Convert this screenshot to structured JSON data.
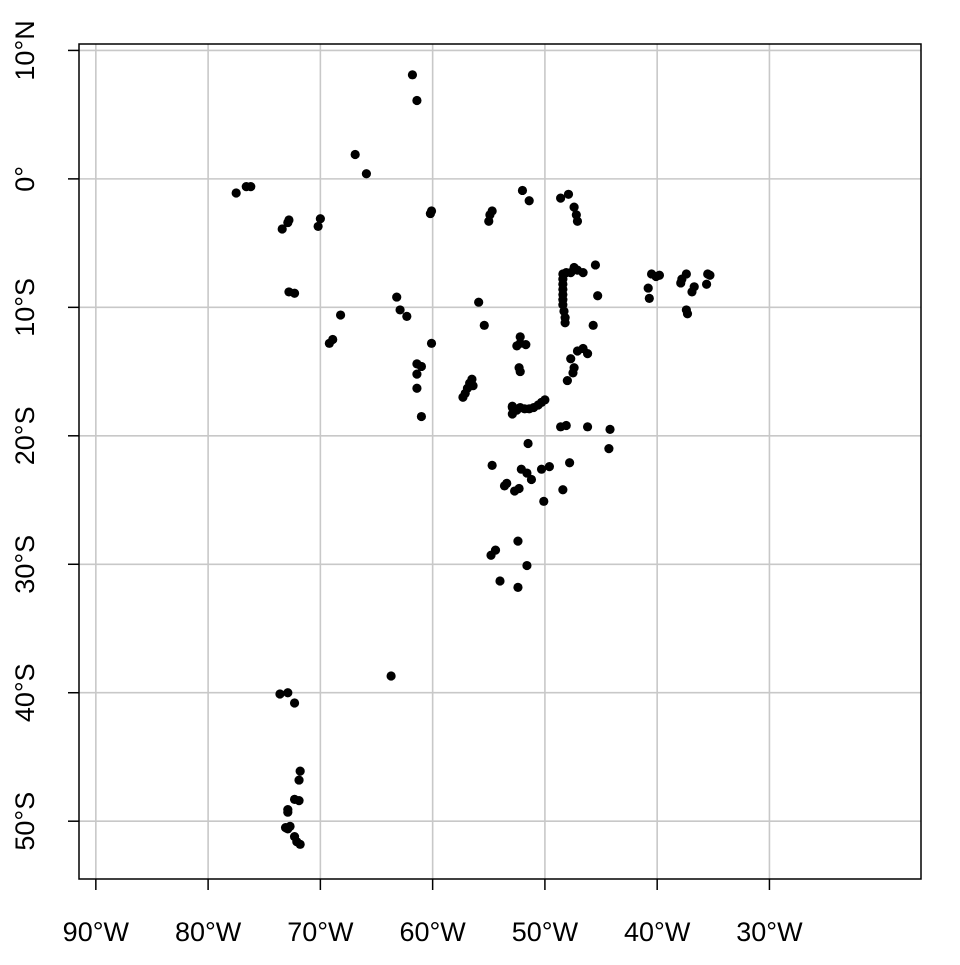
{
  "chart_data": {
    "type": "scatter",
    "title": "",
    "xlabel": "",
    "ylabel": "",
    "xlim": [
      -91.5,
      -16.5
    ],
    "ylim": [
      -54.5,
      10.5
    ],
    "grid": true,
    "x_ticks": [
      {
        "value": -90,
        "label": "90°W"
      },
      {
        "value": -80,
        "label": "80°W"
      },
      {
        "value": -70,
        "label": "70°W"
      },
      {
        "value": -60,
        "label": "60°W"
      },
      {
        "value": -50,
        "label": "50°W"
      },
      {
        "value": -40,
        "label": "40°W"
      },
      {
        "value": -30,
        "label": "30°W"
      }
    ],
    "y_ticks": [
      {
        "value": 10,
        "label": "10°N"
      },
      {
        "value": 0,
        "label": "0°"
      },
      {
        "value": -10,
        "label": "10°S"
      },
      {
        "value": -20,
        "label": "20°S"
      },
      {
        "value": -30,
        "label": "30°S"
      },
      {
        "value": -40,
        "label": "40°S"
      },
      {
        "value": -50,
        "label": "50°S"
      }
    ],
    "grid_x": [
      -90,
      -80,
      -70,
      -60,
      -50,
      -40,
      -30
    ],
    "grid_y": [
      10,
      0,
      -10,
      -20,
      -30,
      -40,
      -50
    ],
    "point_color": "#000000",
    "points": [
      {
        "x": -61.8,
        "y": 8.1
      },
      {
        "x": -61.4,
        "y": 6.1
      },
      {
        "x": -66.9,
        "y": 1.9
      },
      {
        "x": -65.9,
        "y": 0.4
      },
      {
        "x": -77.5,
        "y": -1.1
      },
      {
        "x": -76.6,
        "y": -0.6
      },
      {
        "x": -76.2,
        "y": -0.6
      },
      {
        "x": -73.4,
        "y": -3.9
      },
      {
        "x": -72.9,
        "y": -3.4
      },
      {
        "x": -72.8,
        "y": -3.2
      },
      {
        "x": -70.2,
        "y": -3.7
      },
      {
        "x": -70.0,
        "y": -3.1
      },
      {
        "x": -60.1,
        "y": -2.5
      },
      {
        "x": -60.2,
        "y": -2.7
      },
      {
        "x": -52.0,
        "y": -0.9
      },
      {
        "x": -51.4,
        "y": -1.7
      },
      {
        "x": -54.7,
        "y": -2.5
      },
      {
        "x": -54.9,
        "y": -2.8
      },
      {
        "x": -55.0,
        "y": -3.3
      },
      {
        "x": -48.6,
        "y": -1.5
      },
      {
        "x": -47.9,
        "y": -1.2
      },
      {
        "x": -47.4,
        "y": -2.2
      },
      {
        "x": -47.2,
        "y": -2.8
      },
      {
        "x": -47.1,
        "y": -3.3
      },
      {
        "x": -72.8,
        "y": -8.8
      },
      {
        "x": -72.3,
        "y": -8.9
      },
      {
        "x": -68.2,
        "y": -10.6
      },
      {
        "x": -69.2,
        "y": -12.8
      },
      {
        "x": -68.9,
        "y": -12.5
      },
      {
        "x": -63.2,
        "y": -9.2
      },
      {
        "x": -62.9,
        "y": -10.2
      },
      {
        "x": -62.3,
        "y": -10.7
      },
      {
        "x": -60.1,
        "y": -12.8
      },
      {
        "x": -61.4,
        "y": -14.4
      },
      {
        "x": -61.0,
        "y": -14.6
      },
      {
        "x": -61.4,
        "y": -15.2
      },
      {
        "x": -61.4,
        "y": -16.3
      },
      {
        "x": -61.0,
        "y": -18.5
      },
      {
        "x": -55.9,
        "y": -9.6
      },
      {
        "x": -55.4,
        "y": -11.4
      },
      {
        "x": -57.3,
        "y": -17.0
      },
      {
        "x": -57.1,
        "y": -16.7
      },
      {
        "x": -56.9,
        "y": -16.3
      },
      {
        "x": -56.7,
        "y": -15.9
      },
      {
        "x": -56.5,
        "y": -15.6
      },
      {
        "x": -56.4,
        "y": -16.1
      },
      {
        "x": -52.2,
        "y": -12.3
      },
      {
        "x": -52.2,
        "y": -12.8
      },
      {
        "x": -51.7,
        "y": -12.9
      },
      {
        "x": -52.5,
        "y": -13.0
      },
      {
        "x": -52.3,
        "y": -14.7
      },
      {
        "x": -52.2,
        "y": -15.0
      },
      {
        "x": -52.9,
        "y": -17.8
      },
      {
        "x": -52.9,
        "y": -18.3
      },
      {
        "x": -52.5,
        "y": -18.0
      },
      {
        "x": -52.2,
        "y": -17.8
      },
      {
        "x": -51.8,
        "y": -17.9
      },
      {
        "x": -51.4,
        "y": -17.9
      },
      {
        "x": -51.0,
        "y": -17.8
      },
      {
        "x": -50.6,
        "y": -17.6
      },
      {
        "x": -50.3,
        "y": -17.4
      },
      {
        "x": -50.0,
        "y": -17.2
      },
      {
        "x": -52.9,
        "y": -17.7
      },
      {
        "x": -48.4,
        "y": -7.4
      },
      {
        "x": -48.4,
        "y": -7.8
      },
      {
        "x": -48.4,
        "y": -8.2
      },
      {
        "x": -48.4,
        "y": -8.6
      },
      {
        "x": -48.4,
        "y": -9.0
      },
      {
        "x": -48.4,
        "y": -9.4
      },
      {
        "x": -48.4,
        "y": -9.8
      },
      {
        "x": -48.3,
        "y": -10.3
      },
      {
        "x": -48.2,
        "y": -10.8
      },
      {
        "x": -48.2,
        "y": -11.2
      },
      {
        "x": -48.1,
        "y": -7.3
      },
      {
        "x": -47.7,
        "y": -7.3
      },
      {
        "x": -47.4,
        "y": -6.9
      },
      {
        "x": -47.1,
        "y": -7.1
      },
      {
        "x": -46.6,
        "y": -7.3
      },
      {
        "x": -45.5,
        "y": -6.7
      },
      {
        "x": -45.3,
        "y": -9.1
      },
      {
        "x": -45.7,
        "y": -11.4
      },
      {
        "x": -47.7,
        "y": -14.0
      },
      {
        "x": -47.4,
        "y": -14.7
      },
      {
        "x": -47.5,
        "y": -15.1
      },
      {
        "x": -47.1,
        "y": -13.4
      },
      {
        "x": -46.6,
        "y": -13.2
      },
      {
        "x": -46.2,
        "y": -13.6
      },
      {
        "x": -48.0,
        "y": -15.7
      },
      {
        "x": -51.5,
        "y": -20.6
      },
      {
        "x": -48.6,
        "y": -19.3
      },
      {
        "x": -48.1,
        "y": -19.2
      },
      {
        "x": -46.2,
        "y": -19.3
      },
      {
        "x": -44.2,
        "y": -19.5
      },
      {
        "x": -44.3,
        "y": -21.0
      },
      {
        "x": -47.8,
        "y": -22.1
      },
      {
        "x": -48.4,
        "y": -24.2
      },
      {
        "x": -54.7,
        "y": -22.3
      },
      {
        "x": -52.1,
        "y": -22.6
      },
      {
        "x": -51.6,
        "y": -22.9
      },
      {
        "x": -51.2,
        "y": -23.4
      },
      {
        "x": -50.3,
        "y": -22.6
      },
      {
        "x": -49.6,
        "y": -22.4
      },
      {
        "x": -53.6,
        "y": -23.9
      },
      {
        "x": -53.4,
        "y": -23.7
      },
      {
        "x": -52.7,
        "y": -24.3
      },
      {
        "x": -52.3,
        "y": -24.1
      },
      {
        "x": -50.1,
        "y": -25.1
      },
      {
        "x": -52.4,
        "y": -28.2
      },
      {
        "x": -51.6,
        "y": -30.1
      },
      {
        "x": -54.8,
        "y": -29.3
      },
      {
        "x": -54.4,
        "y": -28.9
      },
      {
        "x": -54.0,
        "y": -31.3
      },
      {
        "x": -52.4,
        "y": -31.8
      },
      {
        "x": -40.8,
        "y": -8.5
      },
      {
        "x": -40.7,
        "y": -9.3
      },
      {
        "x": -40.5,
        "y": -7.4
      },
      {
        "x": -40.1,
        "y": -7.6
      },
      {
        "x": -39.8,
        "y": -7.5
      },
      {
        "x": -37.9,
        "y": -8.1
      },
      {
        "x": -37.8,
        "y": -7.8
      },
      {
        "x": -37.4,
        "y": -7.4
      },
      {
        "x": -37.4,
        "y": -10.2
      },
      {
        "x": -37.3,
        "y": -10.5
      },
      {
        "x": -36.9,
        "y": -8.8
      },
      {
        "x": -36.7,
        "y": -8.4
      },
      {
        "x": -35.5,
        "y": -7.4
      },
      {
        "x": -35.6,
        "y": -8.2
      },
      {
        "x": -35.3,
        "y": -7.5
      },
      {
        "x": -63.7,
        "y": -38.7
      },
      {
        "x": -73.6,
        "y": -40.1
      },
      {
        "x": -72.9,
        "y": -40.0
      },
      {
        "x": -72.3,
        "y": -40.8
      },
      {
        "x": -71.8,
        "y": -46.1
      },
      {
        "x": -71.9,
        "y": -46.8
      },
      {
        "x": -72.3,
        "y": -48.3
      },
      {
        "x": -71.9,
        "y": -48.4
      },
      {
        "x": -72.9,
        "y": -49.1
      },
      {
        "x": -72.9,
        "y": -49.3
      },
      {
        "x": -73.1,
        "y": -50.5
      },
      {
        "x": -72.9,
        "y": -50.6
      },
      {
        "x": -72.7,
        "y": -50.4
      },
      {
        "x": -72.3,
        "y": -51.2
      },
      {
        "x": -72.1,
        "y": -51.6
      },
      {
        "x": -71.8,
        "y": -51.8
      }
    ]
  }
}
